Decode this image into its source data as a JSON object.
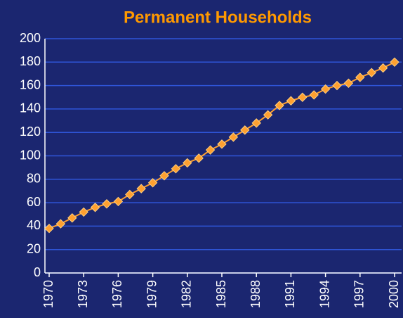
{
  "chart_data": {
    "type": "line",
    "title": "Permanent Households",
    "x": [
      1970,
      1971,
      1972,
      1973,
      1974,
      1975,
      1976,
      1977,
      1978,
      1979,
      1980,
      1981,
      1982,
      1983,
      1984,
      1985,
      1986,
      1987,
      1988,
      1989,
      1990,
      1991,
      1992,
      1993,
      1994,
      1995,
      1996,
      1997,
      1998,
      1999,
      2000
    ],
    "series": [
      {
        "name": "Permanent Households",
        "color": "#ffa030",
        "values": [
          38,
          42,
          47,
          52,
          56,
          59,
          61,
          67,
          72,
          77,
          83,
          89,
          94,
          98,
          105,
          110,
          116,
          122,
          128,
          135,
          143,
          147,
          150,
          152,
          157,
          160,
          162,
          167,
          171,
          175,
          180
        ]
      }
    ],
    "xlim": [
      1970,
      2000
    ],
    "xticks": [
      1970,
      1973,
      1976,
      1979,
      1982,
      1985,
      1988,
      1991,
      1994,
      1997,
      2000
    ],
    "ylim": [
      0,
      200
    ],
    "yticks": [
      0,
      20,
      40,
      60,
      80,
      100,
      120,
      140,
      160,
      180,
      200
    ],
    "grid": true
  }
}
